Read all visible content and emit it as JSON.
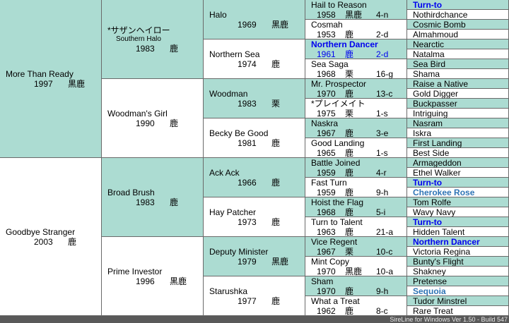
{
  "colors": {
    "male": "#acdcd2",
    "female": "#ffffff",
    "highlight": "#0000ee",
    "highlight2": "#2f74b5",
    "status_bg": "#595959"
  },
  "gen1": [
    {
      "name": "More Than Ready",
      "year": "1997",
      "coat": "黒鹿"
    },
    {
      "name": "Goodbye Stranger",
      "year": "2003",
      "coat": "鹿"
    }
  ],
  "gen2": [
    {
      "name": "*サザンヘイロー",
      "sub": "Southern Halo",
      "year": "1983",
      "coat": "鹿"
    },
    {
      "name": "Woodman's Girl",
      "year": "1990",
      "coat": "鹿"
    },
    {
      "name": "Broad Brush",
      "year": "1983",
      "coat": "鹿"
    },
    {
      "name": "Prime Investor",
      "year": "1996",
      "coat": "黒鹿"
    }
  ],
  "gen3": [
    {
      "name": "Halo",
      "year": "1969",
      "coat": "黒鹿"
    },
    {
      "name": "Northern Sea",
      "year": "1974",
      "coat": "鹿"
    },
    {
      "name": "Woodman",
      "year": "1983",
      "coat": "栗"
    },
    {
      "name": "Becky Be Good",
      "year": "1981",
      "coat": "鹿"
    },
    {
      "name": "Ack Ack",
      "year": "1966",
      "coat": "鹿"
    },
    {
      "name": "Hay Patcher",
      "year": "1973",
      "coat": "鹿"
    },
    {
      "name": "Deputy Minister",
      "year": "1979",
      "coat": "黒鹿"
    },
    {
      "name": "Starushka",
      "year": "1977",
      "coat": "鹿"
    }
  ],
  "gen4": [
    {
      "name": "Hail to Reason",
      "year": "1958",
      "coat": "黒鹿",
      "family": "4-n"
    },
    {
      "name": "Cosmah",
      "year": "1953",
      "coat": "鹿",
      "family": "2-d"
    },
    {
      "name": "Northern Dancer",
      "year": "1961",
      "coat": "鹿",
      "family": "2-d",
      "hl": "blue"
    },
    {
      "name": "Sea Saga",
      "year": "1968",
      "coat": "栗",
      "family": "16-g"
    },
    {
      "name": "Mr. Prospector",
      "year": "1970",
      "coat": "鹿",
      "family": "13-c"
    },
    {
      "name": "*プレイメイト",
      "year": "1975",
      "coat": "栗",
      "family": "1-s"
    },
    {
      "name": "Naskra",
      "year": "1967",
      "coat": "鹿",
      "family": "3-e"
    },
    {
      "name": "Good Landing",
      "year": "1965",
      "coat": "鹿",
      "family": "1-s"
    },
    {
      "name": "Battle Joined",
      "year": "1959",
      "coat": "鹿",
      "family": "4-r"
    },
    {
      "name": "Fast Turn",
      "year": "1959",
      "coat": "鹿",
      "family": "9-h"
    },
    {
      "name": "Hoist the Flag",
      "year": "1968",
      "coat": "鹿",
      "family": "5-i"
    },
    {
      "name": "Turn to Talent",
      "year": "1963",
      "coat": "鹿",
      "family": "21-a"
    },
    {
      "name": "Vice Regent",
      "year": "1967",
      "coat": "栗",
      "family": "10-c"
    },
    {
      "name": "Mint Copy",
      "year": "1970",
      "coat": "黒鹿",
      "family": "10-a"
    },
    {
      "name": "Sham",
      "year": "1970",
      "coat": "鹿",
      "family": "9-h"
    },
    {
      "name": "What a Treat",
      "year": "1962",
      "coat": "鹿",
      "family": "8-c"
    }
  ],
  "gen5": [
    {
      "name": "Turn-to",
      "hl": "blue"
    },
    {
      "name": "Nothirdchance"
    },
    {
      "name": "Cosmic Bomb"
    },
    {
      "name": "Almahmoud"
    },
    {
      "name": "Nearctic"
    },
    {
      "name": "Natalma"
    },
    {
      "name": "Sea Bird"
    },
    {
      "name": "Shama"
    },
    {
      "name": "Raise a Native"
    },
    {
      "name": "Gold Digger"
    },
    {
      "name": "Buckpasser"
    },
    {
      "name": "Intriguing"
    },
    {
      "name": "Nasram"
    },
    {
      "name": "Iskra"
    },
    {
      "name": "First Landing"
    },
    {
      "name": "Best Side"
    },
    {
      "name": "Armageddon"
    },
    {
      "name": "Ethel Walker"
    },
    {
      "name": "Turn-to",
      "hl": "blue"
    },
    {
      "name": "Cherokee Rose",
      "hl": "steel"
    },
    {
      "name": "Tom Rolfe"
    },
    {
      "name": "Wavy Navy"
    },
    {
      "name": "Turn-to",
      "hl": "blue"
    },
    {
      "name": "Hidden Talent"
    },
    {
      "name": "Northern Dancer",
      "hl": "blue"
    },
    {
      "name": "Victoria Regina"
    },
    {
      "name": "Bunty's Flight"
    },
    {
      "name": "Shakney"
    },
    {
      "name": "Pretense"
    },
    {
      "name": "Sequoia",
      "hl": "steel"
    },
    {
      "name": "Tudor Minstrel"
    },
    {
      "name": "Rare Treat"
    }
  ],
  "status": "SireLine for Windows  Ver 1.50 - Build 547"
}
